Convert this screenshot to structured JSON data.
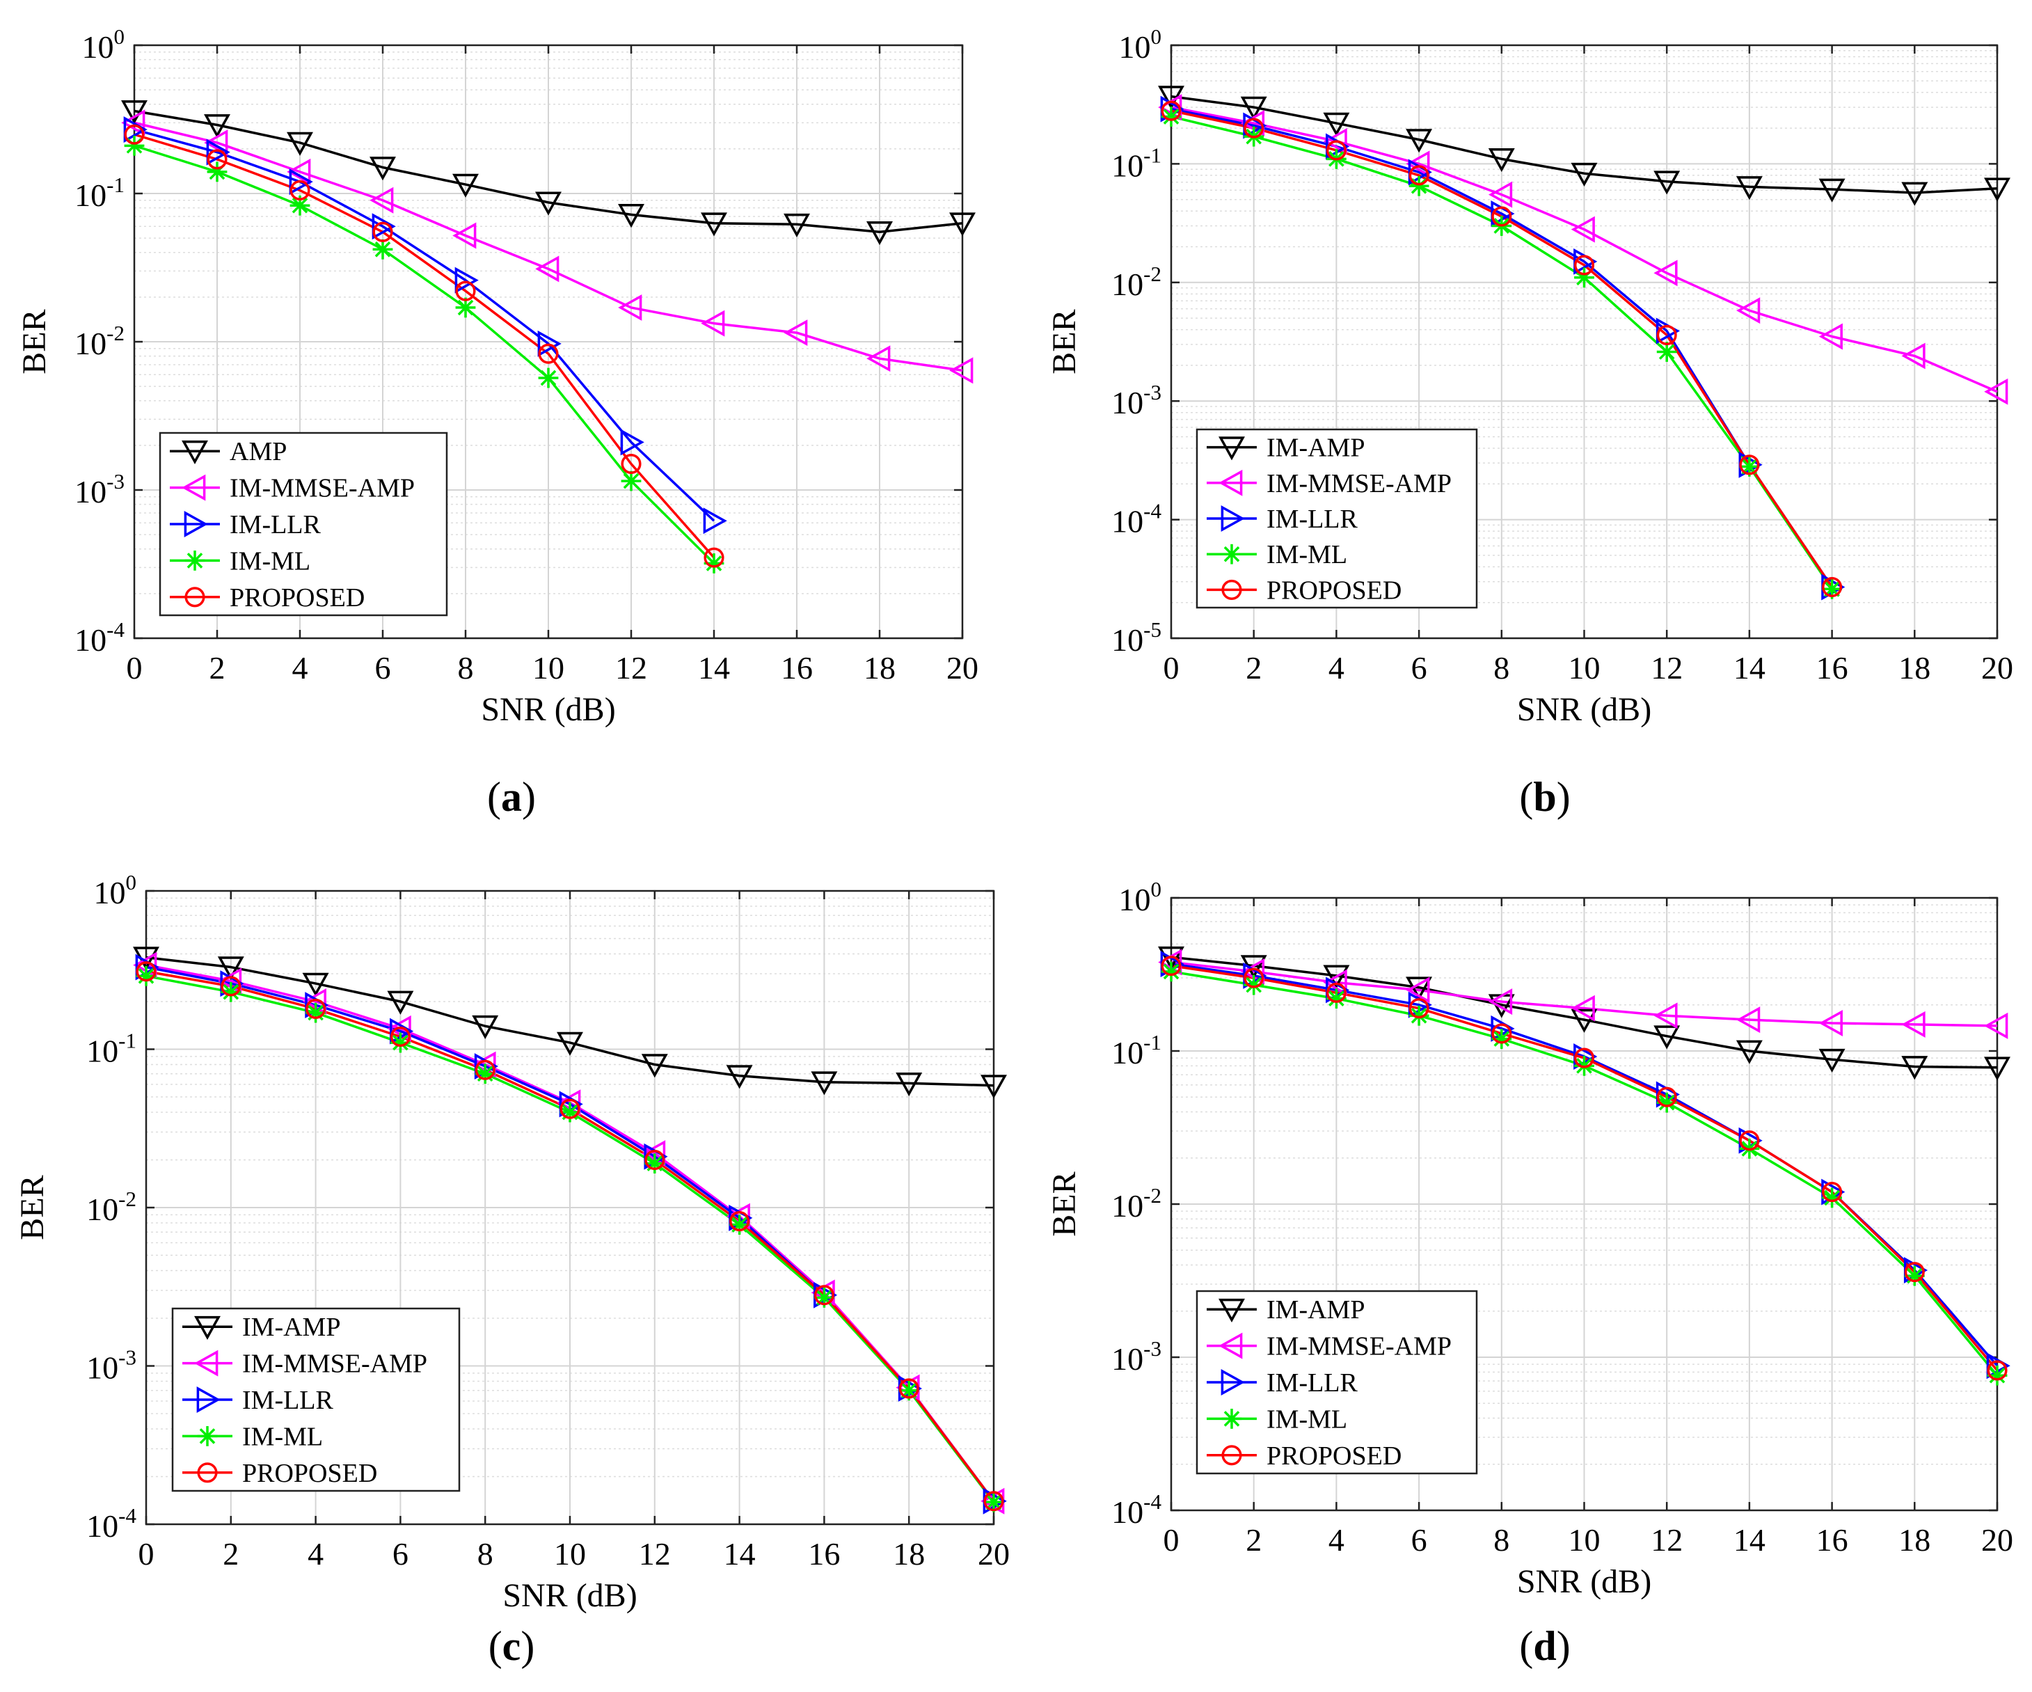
{
  "figure": {
    "panel_labels": [
      "(a)",
      "(b)",
      "(c)",
      "(d)"
    ]
  },
  "series_styles": [
    {
      "key": "amp",
      "color": "#000000",
      "marker": "triangle-down"
    },
    {
      "key": "mmse",
      "color": "#ff00ff",
      "marker": "triangle-left"
    },
    {
      "key": "llr",
      "color": "#0000ff",
      "marker": "triangle-right"
    },
    {
      "key": "ml",
      "color": "#00ee00",
      "marker": "asterisk"
    },
    {
      "key": "proposed",
      "color": "#ff0000",
      "marker": "circle"
    }
  ],
  "chart_data": [
    {
      "type": "line",
      "panel": "(a)",
      "xlabel": "SNR (dB)",
      "ylabel": "BER",
      "yscale": "log",
      "xlim": [
        0,
        20
      ],
      "ylim": [
        0.0001,
        1
      ],
      "xticks": [
        0,
        2,
        4,
        6,
        8,
        10,
        12,
        14,
        16,
        18,
        20
      ],
      "yticks": [
        "10^-4",
        "10^-3",
        "10^-2",
        "10^-1",
        "10^0"
      ],
      "grid": true,
      "legend_position": "lower-left",
      "series": [
        {
          "name": "AMP",
          "style": "amp",
          "x": [
            0,
            2,
            4,
            6,
            8,
            10,
            12,
            14,
            16,
            18,
            20
          ],
          "y": [
            0.36,
            0.29,
            0.22,
            0.15,
            0.115,
            0.087,
            0.072,
            0.063,
            0.062,
            0.055,
            0.063
          ]
        },
        {
          "name": "IM-MMSE-AMP",
          "style": "mmse",
          "x": [
            0,
            2,
            4,
            6,
            8,
            10,
            12,
            14,
            16,
            18,
            20
          ],
          "y": [
            0.3,
            0.22,
            0.14,
            0.09,
            0.052,
            0.031,
            0.017,
            0.0133,
            0.0115,
            0.0077,
            0.0064
          ]
        },
        {
          "name": "IM-LLR",
          "style": "llr",
          "x": [
            0,
            2,
            4,
            6,
            8,
            10,
            12,
            14
          ],
          "y": [
            0.27,
            0.19,
            0.12,
            0.06,
            0.026,
            0.0097,
            0.0021,
            0.00062
          ]
        },
        {
          "name": "IM-ML",
          "style": "ml",
          "x": [
            0,
            2,
            4,
            6,
            8,
            10,
            12,
            14
          ],
          "y": [
            0.21,
            0.14,
            0.083,
            0.042,
            0.017,
            0.0057,
            0.00115,
            0.00032
          ]
        },
        {
          "name": "PROPOSED",
          "style": "proposed",
          "x": [
            0,
            2,
            4,
            6,
            8,
            10,
            12,
            14
          ],
          "y": [
            0.25,
            0.17,
            0.105,
            0.055,
            0.022,
            0.0083,
            0.0015,
            0.00035
          ]
        }
      ]
    },
    {
      "type": "line",
      "panel": "(b)",
      "xlabel": "SNR (dB)",
      "ylabel": "BER",
      "yscale": "log",
      "xlim": [
        0,
        20
      ],
      "ylim": [
        1e-05,
        1
      ],
      "xticks": [
        0,
        2,
        4,
        6,
        8,
        10,
        12,
        14,
        16,
        18,
        20
      ],
      "yticks": [
        "10^-5",
        "10^-4",
        "10^-3",
        "10^-2",
        "10^-1",
        "10^0"
      ],
      "grid": true,
      "legend_position": "lower-left",
      "series": [
        {
          "name": "IM-AMP",
          "style": "amp",
          "x": [
            0,
            2,
            4,
            6,
            8,
            10,
            12,
            14,
            16,
            18,
            20
          ],
          "y": [
            0.37,
            0.3,
            0.22,
            0.16,
            0.11,
            0.083,
            0.071,
            0.064,
            0.061,
            0.057,
            0.062
          ]
        },
        {
          "name": "IM-MMSE-AMP",
          "style": "mmse",
          "x": [
            0,
            2,
            4,
            6,
            8,
            10,
            12,
            14,
            16,
            18,
            20
          ],
          "y": [
            0.3,
            0.22,
            0.155,
            0.1,
            0.055,
            0.028,
            0.012,
            0.0058,
            0.0035,
            0.0024,
            0.0012
          ]
        },
        {
          "name": "IM-LLR",
          "style": "llr",
          "x": [
            0,
            2,
            4,
            6,
            8,
            10,
            12,
            14,
            16
          ],
          "y": [
            0.29,
            0.21,
            0.14,
            0.085,
            0.038,
            0.015,
            0.0039,
            0.00029,
            2.7e-05
          ]
        },
        {
          "name": "IM-ML",
          "style": "ml",
          "x": [
            0,
            2,
            4,
            6,
            8,
            10,
            12,
            14,
            16
          ],
          "y": [
            0.25,
            0.17,
            0.11,
            0.065,
            0.03,
            0.011,
            0.0026,
            0.00028,
            2.6e-05
          ]
        },
        {
          "name": "PROPOSED",
          "style": "proposed",
          "x": [
            0,
            2,
            4,
            6,
            8,
            10,
            12,
            14,
            16
          ],
          "y": [
            0.28,
            0.2,
            0.13,
            0.08,
            0.036,
            0.014,
            0.0036,
            0.00029,
            2.7e-05
          ]
        }
      ]
    },
    {
      "type": "line",
      "panel": "(c)",
      "xlabel": "SNR (dB)",
      "ylabel": "BER",
      "yscale": "log",
      "xlim": [
        0,
        20
      ],
      "ylim": [
        0.0001,
        1
      ],
      "xticks": [
        0,
        2,
        4,
        6,
        8,
        10,
        12,
        14,
        16,
        18,
        20
      ],
      "yticks": [
        "10^-4",
        "10^-3",
        "10^-2",
        "10^-1",
        "10^0"
      ],
      "grid": true,
      "legend_position": "lower-left",
      "series": [
        {
          "name": "IM-AMP",
          "style": "amp",
          "x": [
            0,
            2,
            4,
            6,
            8,
            10,
            12,
            14,
            16,
            18,
            20
          ],
          "y": [
            0.38,
            0.33,
            0.26,
            0.2,
            0.14,
            0.11,
            0.08,
            0.068,
            0.062,
            0.061,
            0.059
          ]
        },
        {
          "name": "IM-MMSE-AMP",
          "style": "mmse",
          "x": [
            0,
            2,
            4,
            6,
            8,
            10,
            12,
            14,
            16,
            18,
            20
          ],
          "y": [
            0.34,
            0.27,
            0.2,
            0.135,
            0.08,
            0.046,
            0.022,
            0.0088,
            0.0029,
            0.00073,
            0.00014
          ]
        },
        {
          "name": "IM-LLR",
          "style": "llr",
          "x": [
            0,
            2,
            4,
            6,
            8,
            10,
            12,
            14,
            16,
            18,
            20
          ],
          "y": [
            0.33,
            0.26,
            0.19,
            0.13,
            0.078,
            0.045,
            0.021,
            0.0086,
            0.0028,
            0.00072,
            0.00014
          ]
        },
        {
          "name": "IM-ML",
          "style": "ml",
          "x": [
            0,
            2,
            4,
            6,
            8,
            10,
            12,
            14,
            16,
            18,
            20
          ],
          "y": [
            0.29,
            0.23,
            0.17,
            0.11,
            0.07,
            0.04,
            0.019,
            0.0078,
            0.0027,
            0.0007,
            0.000138
          ]
        },
        {
          "name": "PROPOSED",
          "style": "proposed",
          "x": [
            0,
            2,
            4,
            6,
            8,
            10,
            12,
            14,
            16,
            18,
            20
          ],
          "y": [
            0.31,
            0.25,
            0.18,
            0.12,
            0.074,
            0.042,
            0.02,
            0.0082,
            0.0028,
            0.00072,
            0.00014
          ]
        }
      ]
    },
    {
      "type": "line",
      "panel": "(d)",
      "xlabel": "SNR (dB)",
      "ylabel": "BER",
      "yscale": "log",
      "xlim": [
        0,
        20
      ],
      "ylim": [
        0.0001,
        1
      ],
      "xticks": [
        0,
        2,
        4,
        6,
        8,
        10,
        12,
        14,
        16,
        18,
        20
      ],
      "yticks": [
        "10^-4",
        "10^-3",
        "10^-2",
        "10^-1",
        "10^0"
      ],
      "grid": true,
      "legend_position": "lower-left",
      "series": [
        {
          "name": "IM-AMP",
          "style": "amp",
          "x": [
            0,
            2,
            4,
            6,
            8,
            10,
            12,
            14,
            16,
            18,
            20
          ],
          "y": [
            0.41,
            0.36,
            0.31,
            0.26,
            0.2,
            0.16,
            0.125,
            0.1,
            0.088,
            0.079,
            0.078
          ]
        },
        {
          "name": "IM-MMSE-AMP",
          "style": "mmse",
          "x": [
            0,
            2,
            4,
            6,
            8,
            10,
            12,
            14,
            16,
            18,
            20
          ],
          "y": [
            0.38,
            0.33,
            0.28,
            0.25,
            0.21,
            0.19,
            0.17,
            0.16,
            0.152,
            0.149,
            0.146
          ]
        },
        {
          "name": "IM-LLR",
          "style": "llr",
          "x": [
            0,
            2,
            4,
            6,
            8,
            10,
            12,
            14,
            16,
            18,
            20
          ],
          "y": [
            0.37,
            0.31,
            0.25,
            0.2,
            0.14,
            0.092,
            0.052,
            0.026,
            0.012,
            0.0037,
            0.00088
          ]
        },
        {
          "name": "IM-ML",
          "style": "ml",
          "x": [
            0,
            2,
            4,
            6,
            8,
            10,
            12,
            14,
            16,
            18,
            20
          ],
          "y": [
            0.33,
            0.27,
            0.22,
            0.17,
            0.12,
            0.08,
            0.046,
            0.023,
            0.011,
            0.0034,
            0.00076
          ]
        },
        {
          "name": "PROPOSED",
          "style": "proposed",
          "x": [
            0,
            2,
            4,
            6,
            8,
            10,
            12,
            14,
            16,
            18,
            20
          ],
          "y": [
            0.36,
            0.3,
            0.24,
            0.19,
            0.13,
            0.09,
            0.05,
            0.026,
            0.012,
            0.0036,
            0.00082
          ]
        }
      ]
    }
  ]
}
